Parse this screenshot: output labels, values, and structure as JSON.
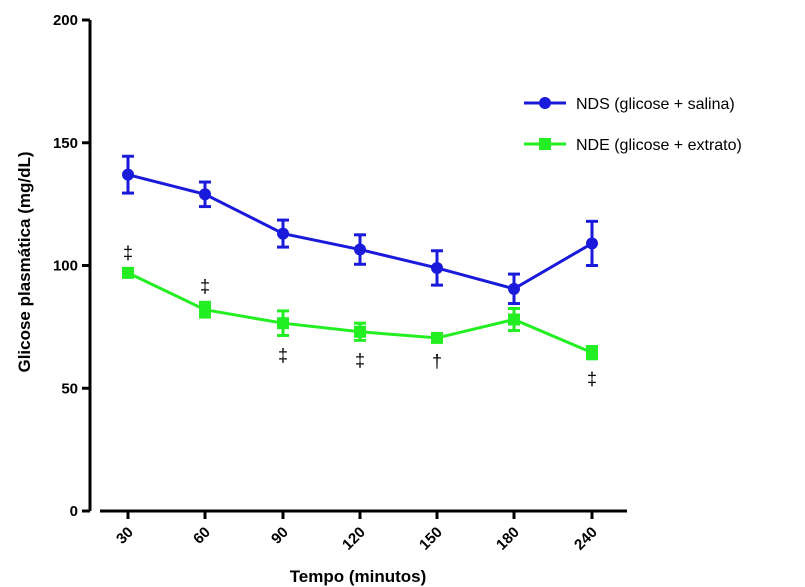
{
  "chart_data": {
    "type": "line",
    "title": "",
    "xlabel": "Tempo (minutos)",
    "ylabel": "Glicose plasmática (mg/dL)",
    "categories": [
      "30",
      "60",
      "90",
      "120",
      "150",
      "180",
      "240"
    ],
    "ylim": [
      0,
      200
    ],
    "yticks": [
      "0",
      "50",
      "100",
      "150",
      "200"
    ],
    "grid": false,
    "legend_position": "right",
    "series": [
      {
        "name": "NDS (glicose + salina)",
        "color": "#1a1adb",
        "marker": "circle",
        "values": [
          137,
          129,
          113,
          106.5,
          99,
          90.5,
          109
        ],
        "errors": [
          7.5,
          5,
          5.5,
          6,
          7,
          6,
          9
        ]
      },
      {
        "name": "NDE (glicose + extrato)",
        "color": "#22ee22",
        "marker": "square",
        "values": [
          97,
          82,
          76.5,
          73,
          70.5,
          78,
          64.5
        ],
        "errors": [
          1.5,
          3,
          5,
          3.5,
          1.5,
          4.5,
          2.5
        ]
      }
    ],
    "annotations": [
      {
        "category": "30",
        "text": "‡",
        "position": "above"
      },
      {
        "category": "60",
        "text": "‡",
        "position": "above"
      },
      {
        "category": "90",
        "text": "‡",
        "position": "below"
      },
      {
        "category": "120",
        "text": "‡",
        "position": "below"
      },
      {
        "category": "150",
        "text": "†",
        "position": "below"
      },
      {
        "category": "240",
        "text": "‡",
        "position": "below"
      }
    ]
  }
}
